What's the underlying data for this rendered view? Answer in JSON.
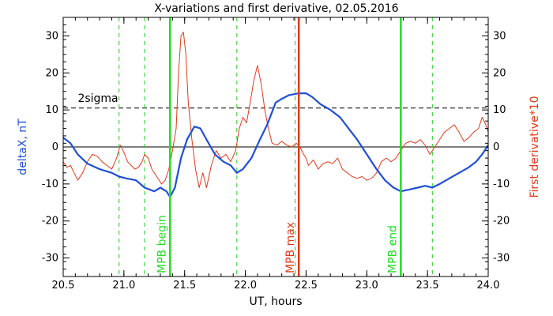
{
  "chart_data": {
    "type": "line",
    "title": "X-variations and first derivative, 02.05.2016",
    "xlabel": "UT, hours",
    "ylabel_left": "deltaX, nT",
    "ylabel_right": "First derivative*10",
    "xlim": [
      20.5,
      24.0
    ],
    "ylim": [
      -35,
      35
    ],
    "x_ticks": [
      20.5,
      21.0,
      21.5,
      22.0,
      22.5,
      23.0,
      23.5,
      24.0
    ],
    "y_ticks": [
      -30,
      -20,
      -10,
      0,
      10,
      20,
      30
    ],
    "colors": {
      "deltaX": "#1f4fd8",
      "derivative": "#e03a1a",
      "mpb_boundary": "#22dd22",
      "mpb_max": "#e03a1a",
      "sigma": "#000000",
      "dashed_green": "#22cc22"
    },
    "sigma_level": 10.5,
    "sigma_label": "2sigma",
    "zero_line": 0,
    "dashed_green_lines": [
      20.96,
      21.17,
      21.93,
      22.41,
      23.54
    ],
    "markers": [
      {
        "x": 21.38,
        "label": "MPB begin",
        "color": "#22dd22"
      },
      {
        "x": 22.44,
        "label": "MPB max",
        "color": "#e03a1a"
      },
      {
        "x": 23.28,
        "label": "MPB end",
        "color": "#22dd22"
      }
    ],
    "series": [
      {
        "key": "deltaX",
        "points": [
          [
            20.5,
            2.5
          ],
          [
            20.56,
            1.0
          ],
          [
            20.62,
            -2.0
          ],
          [
            20.7,
            -4.5
          ],
          [
            20.8,
            -6.0
          ],
          [
            20.9,
            -7.0
          ],
          [
            20.96,
            -8.0
          ],
          [
            21.02,
            -8.5
          ],
          [
            21.1,
            -9.0
          ],
          [
            21.17,
            -11.0
          ],
          [
            21.25,
            -12.0
          ],
          [
            21.3,
            -11.0
          ],
          [
            21.35,
            -12.0
          ],
          [
            21.38,
            -13.5
          ],
          [
            21.42,
            -11.0
          ],
          [
            21.47,
            -3.0
          ],
          [
            21.52,
            2.0
          ],
          [
            21.58,
            5.5
          ],
          [
            21.63,
            5.0
          ],
          [
            21.68,
            2.0
          ],
          [
            21.75,
            -2.0
          ],
          [
            21.82,
            -4.0
          ],
          [
            21.88,
            -5.0
          ],
          [
            21.93,
            -7.0
          ],
          [
            21.98,
            -6.0
          ],
          [
            22.05,
            -3.0
          ],
          [
            22.12,
            2.0
          ],
          [
            22.18,
            6.0
          ],
          [
            22.25,
            12.0
          ],
          [
            22.3,
            13.0
          ],
          [
            22.36,
            14.0
          ],
          [
            22.44,
            14.5
          ],
          [
            22.5,
            14.5
          ],
          [
            22.55,
            13.5
          ],
          [
            22.62,
            11.5
          ],
          [
            22.7,
            10.0
          ],
          [
            22.78,
            8.0
          ],
          [
            22.85,
            5.0
          ],
          [
            22.92,
            2.0
          ],
          [
            23.0,
            -2.0
          ],
          [
            23.08,
            -6.0
          ],
          [
            23.15,
            -9.0
          ],
          [
            23.22,
            -11.0
          ],
          [
            23.28,
            -12.0
          ],
          [
            23.35,
            -11.5
          ],
          [
            23.42,
            -11.0
          ],
          [
            23.48,
            -10.5
          ],
          [
            23.54,
            -11.0
          ],
          [
            23.6,
            -10.0
          ],
          [
            23.68,
            -8.5
          ],
          [
            23.76,
            -7.0
          ],
          [
            23.84,
            -5.5
          ],
          [
            23.9,
            -4.0
          ],
          [
            23.95,
            -2.0
          ],
          [
            24.0,
            0.5
          ]
        ]
      },
      {
        "key": "derivative",
        "points": [
          [
            20.5,
            -4.0
          ],
          [
            20.53,
            -5.5
          ],
          [
            20.56,
            -5.0
          ],
          [
            20.59,
            -7.0
          ],
          [
            20.62,
            -9.0
          ],
          [
            20.66,
            -7.0
          ],
          [
            20.7,
            -4.0
          ],
          [
            20.74,
            -2.0
          ],
          [
            20.78,
            -2.5
          ],
          [
            20.82,
            -4.0
          ],
          [
            20.86,
            -5.0
          ],
          [
            20.9,
            -6.0
          ],
          [
            20.94,
            -3.0
          ],
          [
            20.97,
            0.5
          ],
          [
            21.0,
            -1.5
          ],
          [
            21.03,
            -4.0
          ],
          [
            21.06,
            -5.0
          ],
          [
            21.09,
            -6.0
          ],
          [
            21.12,
            -5.5
          ],
          [
            21.15,
            -4.0
          ],
          [
            21.17,
            -2.0
          ],
          [
            21.2,
            -3.0
          ],
          [
            21.23,
            -6.0
          ],
          [
            21.27,
            -8.0
          ],
          [
            21.31,
            -10.0
          ],
          [
            21.34,
            -9.0
          ],
          [
            21.37,
            -6.0
          ],
          [
            21.4,
            -1.0
          ],
          [
            21.43,
            5.0
          ],
          [
            21.45,
            20.0
          ],
          [
            21.47,
            30.0
          ],
          [
            21.49,
            31.0
          ],
          [
            21.51,
            25.0
          ],
          [
            21.53,
            12.0
          ],
          [
            21.56,
            2.0
          ],
          [
            21.59,
            -6.0
          ],
          [
            21.62,
            -11.0
          ],
          [
            21.65,
            -7.0
          ],
          [
            21.68,
            -11.0
          ],
          [
            21.72,
            -5.0
          ],
          [
            21.76,
            -1.0
          ],
          [
            21.8,
            -3.0
          ],
          [
            21.84,
            -2.0
          ],
          [
            21.88,
            -4.0
          ],
          [
            21.92,
            -1.0
          ],
          [
            21.95,
            5.0
          ],
          [
            21.98,
            8.0
          ],
          [
            22.01,
            6.5
          ],
          [
            22.04,
            12.0
          ],
          [
            22.07,
            18.0
          ],
          [
            22.1,
            22.0
          ],
          [
            22.13,
            17.0
          ],
          [
            22.16,
            10.0
          ],
          [
            22.19,
            5.0
          ],
          [
            22.22,
            1.0
          ],
          [
            22.26,
            0.5
          ],
          [
            22.3,
            1.5
          ],
          [
            22.34,
            0.5
          ],
          [
            22.38,
            0.0
          ],
          [
            22.42,
            1.0
          ],
          [
            22.45,
            0.0
          ],
          [
            22.48,
            -2.0
          ],
          [
            22.5,
            -3.0
          ],
          [
            22.52,
            -5.0
          ],
          [
            22.56,
            -3.5
          ],
          [
            22.6,
            -6.0
          ],
          [
            22.64,
            -4.5
          ],
          [
            22.68,
            -4.0
          ],
          [
            22.72,
            -4.5
          ],
          [
            22.76,
            -3.0
          ],
          [
            22.8,
            -6.0
          ],
          [
            22.84,
            -7.0
          ],
          [
            22.88,
            -8.0
          ],
          [
            22.92,
            -8.5
          ],
          [
            22.96,
            -8.0
          ],
          [
            23.0,
            -9.0
          ],
          [
            23.04,
            -8.5
          ],
          [
            23.08,
            -7.0
          ],
          [
            23.12,
            -4.0
          ],
          [
            23.16,
            -3.0
          ],
          [
            23.2,
            -4.0
          ],
          [
            23.24,
            -3.0
          ],
          [
            23.28,
            -1.0
          ],
          [
            23.32,
            1.0
          ],
          [
            23.36,
            1.5
          ],
          [
            23.4,
            1.0
          ],
          [
            23.44,
            2.0
          ],
          [
            23.48,
            0.5
          ],
          [
            23.52,
            -2.0
          ],
          [
            23.56,
            0.0
          ],
          [
            23.6,
            2.0
          ],
          [
            23.64,
            4.0
          ],
          [
            23.68,
            5.0
          ],
          [
            23.72,
            6.0
          ],
          [
            23.76,
            4.0
          ],
          [
            23.8,
            1.5
          ],
          [
            23.84,
            2.5
          ],
          [
            23.88,
            4.0
          ],
          [
            23.92,
            5.0
          ],
          [
            23.95,
            8.0
          ],
          [
            23.98,
            6.0
          ],
          [
            24.0,
            4.0
          ]
        ]
      }
    ]
  }
}
